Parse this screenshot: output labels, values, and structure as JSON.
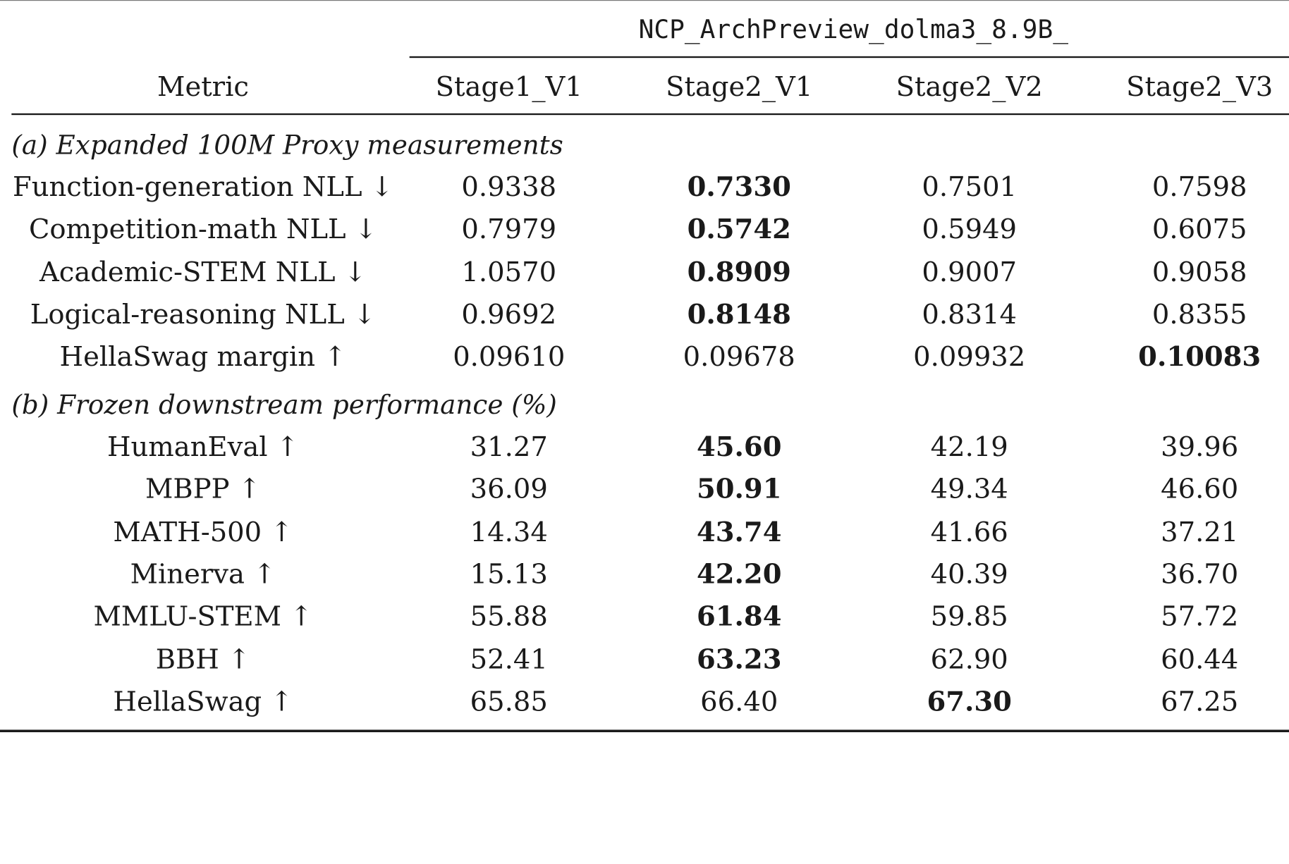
{
  "table": {
    "group_header": "NCP_ArchPreview_dolma3_8.9B_",
    "columns": [
      "Metric",
      "Stage1_V1",
      "Stage2_V1",
      "Stage2_V2",
      "Stage2_V3"
    ],
    "sections": [
      {
        "title": "(a) Expanded 100M Proxy measurements",
        "rows": [
          {
            "metric": "Function-generation NLL ↓",
            "values": [
              "0.9338",
              "0.7330",
              "0.7501",
              "0.7598"
            ],
            "best": 1
          },
          {
            "metric": "Competition-math NLL ↓",
            "values": [
              "0.7979",
              "0.5742",
              "0.5949",
              "0.6075"
            ],
            "best": 1
          },
          {
            "metric": "Academic-STEM NLL ↓",
            "values": [
              "1.0570",
              "0.8909",
              "0.9007",
              "0.9058"
            ],
            "best": 1
          },
          {
            "metric": "Logical-reasoning NLL ↓",
            "values": [
              "0.9692",
              "0.8148",
              "0.8314",
              "0.8355"
            ],
            "best": 1
          },
          {
            "metric": "HellaSwag margin ↑",
            "values": [
              "0.09610",
              "0.09678",
              "0.09932",
              "0.10083"
            ],
            "best": 3
          }
        ]
      },
      {
        "title": "(b) Frozen downstream performance (%)",
        "rows": [
          {
            "metric": "HumanEval ↑",
            "values": [
              "31.27",
              "45.60",
              "42.19",
              "39.96"
            ],
            "best": 1
          },
          {
            "metric": "MBPP ↑",
            "values": [
              "36.09",
              "50.91",
              "49.34",
              "46.60"
            ],
            "best": 1
          },
          {
            "metric": "MATH-500 ↑",
            "values": [
              "14.34",
              "43.74",
              "41.66",
              "37.21"
            ],
            "best": 1
          },
          {
            "metric": "Minerva ↑",
            "values": [
              "15.13",
              "42.20",
              "40.39",
              "36.70"
            ],
            "best": 1
          },
          {
            "metric": "MMLU-STEM ↑",
            "values": [
              "55.88",
              "61.84",
              "59.85",
              "57.72"
            ],
            "best": 1
          },
          {
            "metric": "BBH ↑",
            "values": [
              "52.41",
              "63.23",
              "62.90",
              "60.44"
            ],
            "best": 1
          },
          {
            "metric": "HellaSwag ↑",
            "values": [
              "65.85",
              "66.40",
              "67.30",
              "67.25"
            ],
            "best": 2
          }
        ]
      }
    ]
  }
}
